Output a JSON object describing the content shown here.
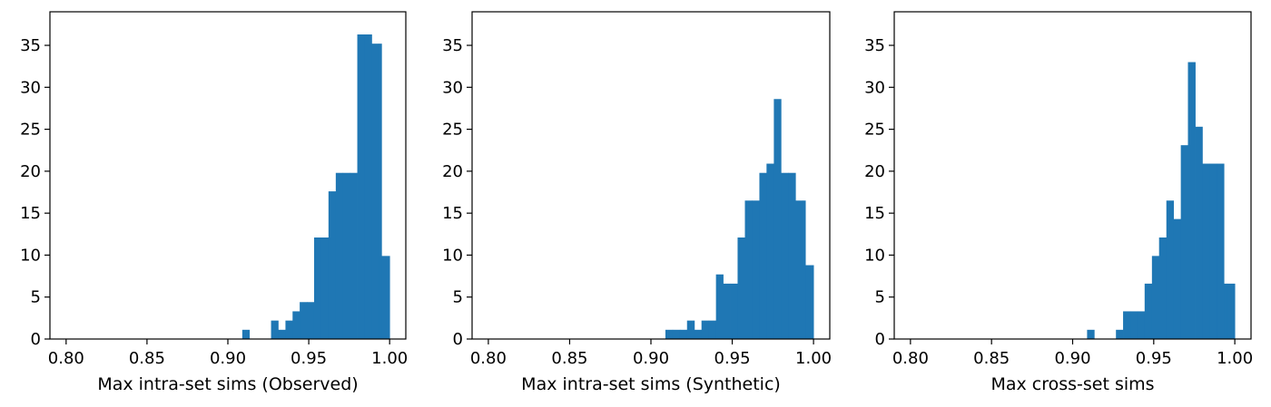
{
  "chart_data": [
    {
      "type": "bar",
      "xlabel": "Max intra-set sims (Observed)",
      "ylabel": "",
      "xlim": [
        0.79,
        1.01
      ],
      "ylim": [
        0,
        39
      ],
      "xticks": [
        "0.80",
        "0.85",
        "0.90",
        "0.95",
        "1.00"
      ],
      "yticks": [
        "0",
        "5",
        "10",
        "15",
        "20",
        "25",
        "30",
        "35"
      ],
      "bin_width": 0.00444,
      "bars": [
        {
          "x_start": 0.9089,
          "x_end": 0.9133,
          "value": 1.1
        },
        {
          "x_start": 0.9267,
          "x_end": 0.9311,
          "value": 2.2
        },
        {
          "x_start": 0.9311,
          "x_end": 0.9356,
          "value": 1.1
        },
        {
          "x_start": 0.9356,
          "x_end": 0.94,
          "value": 2.2
        },
        {
          "x_start": 0.94,
          "x_end": 0.9444,
          "value": 3.3
        },
        {
          "x_start": 0.9444,
          "x_end": 0.9489,
          "value": 4.4
        },
        {
          "x_start": 0.9489,
          "x_end": 0.9533,
          "value": 4.4
        },
        {
          "x_start": 0.9533,
          "x_end": 0.9578,
          "value": 12.1
        },
        {
          "x_start": 0.9578,
          "x_end": 0.9622,
          "value": 12.1
        },
        {
          "x_start": 0.9622,
          "x_end": 0.9667,
          "value": 17.6
        },
        {
          "x_start": 0.9667,
          "x_end": 0.9711,
          "value": 19.8
        },
        {
          "x_start": 0.9711,
          "x_end": 0.9756,
          "value": 19.8
        },
        {
          "x_start": 0.9756,
          "x_end": 0.98,
          "value": 19.8
        },
        {
          "x_start": 0.98,
          "x_end": 0.9844,
          "value": 36.3
        },
        {
          "x_start": 0.9844,
          "x_end": 0.9889,
          "value": 36.3
        },
        {
          "x_start": 0.9889,
          "x_end": 0.9933,
          "value": 35.2
        },
        {
          "x_start": 0.9933,
          "x_end": 0.995,
          "value": 35.2
        },
        {
          "x_start": 0.995,
          "x_end": 1.0,
          "value": 9.9
        }
      ],
      "color": "#1f77b4"
    },
    {
      "type": "bar",
      "xlabel": "Max intra-set sims (Synthetic)",
      "ylabel": "",
      "xlim": [
        0.79,
        1.01
      ],
      "ylim": [
        0,
        39
      ],
      "xticks": [
        "0.80",
        "0.85",
        "0.90",
        "0.95",
        "1.00"
      ],
      "yticks": [
        "0",
        "5",
        "10",
        "15",
        "20",
        "25",
        "30",
        "35"
      ],
      "bin_width": 0.00444,
      "bars": [
        {
          "x_start": 0.9089,
          "x_end": 0.9133,
          "value": 1.1
        },
        {
          "x_start": 0.9133,
          "x_end": 0.9178,
          "value": 1.1
        },
        {
          "x_start": 0.9178,
          "x_end": 0.9222,
          "value": 1.1
        },
        {
          "x_start": 0.9222,
          "x_end": 0.9267,
          "value": 2.2
        },
        {
          "x_start": 0.9267,
          "x_end": 0.9311,
          "value": 1.1
        },
        {
          "x_start": 0.9311,
          "x_end": 0.9356,
          "value": 2.2
        },
        {
          "x_start": 0.9356,
          "x_end": 0.94,
          "value": 2.2
        },
        {
          "x_start": 0.94,
          "x_end": 0.9444,
          "value": 7.7
        },
        {
          "x_start": 0.9444,
          "x_end": 0.9489,
          "value": 6.6
        },
        {
          "x_start": 0.9489,
          "x_end": 0.9533,
          "value": 6.6
        },
        {
          "x_start": 0.9533,
          "x_end": 0.9578,
          "value": 12.1
        },
        {
          "x_start": 0.9578,
          "x_end": 0.9622,
          "value": 16.5
        },
        {
          "x_start": 0.9622,
          "x_end": 0.9667,
          "value": 16.5
        },
        {
          "x_start": 0.9667,
          "x_end": 0.9711,
          "value": 19.8
        },
        {
          "x_start": 0.9711,
          "x_end": 0.9756,
          "value": 20.9
        },
        {
          "x_start": 0.9756,
          "x_end": 0.98,
          "value": 28.6
        },
        {
          "x_start": 0.98,
          "x_end": 0.9844,
          "value": 19.8
        },
        {
          "x_start": 0.9844,
          "x_end": 0.9889,
          "value": 19.8
        },
        {
          "x_start": 0.9889,
          "x_end": 0.9933,
          "value": 16.5
        },
        {
          "x_start": 0.9933,
          "x_end": 0.995,
          "value": 16.5
        },
        {
          "x_start": 0.995,
          "x_end": 1.0,
          "value": 8.8
        }
      ],
      "color": "#1f77b4"
    },
    {
      "type": "bar",
      "xlabel": "Max cross-set sims",
      "ylabel": "",
      "xlim": [
        0.79,
        1.01
      ],
      "ylim": [
        0,
        39
      ],
      "xticks": [
        "0.80",
        "0.85",
        "0.90",
        "0.95",
        "1.00"
      ],
      "yticks": [
        "0",
        "5",
        "10",
        "15",
        "20",
        "25",
        "30",
        "35"
      ],
      "bin_width": 0.00444,
      "bars": [
        {
          "x_start": 0.9089,
          "x_end": 0.9133,
          "value": 1.1
        },
        {
          "x_start": 0.9267,
          "x_end": 0.9311,
          "value": 1.1
        },
        {
          "x_start": 0.9311,
          "x_end": 0.9356,
          "value": 3.3
        },
        {
          "x_start": 0.9356,
          "x_end": 0.94,
          "value": 3.3
        },
        {
          "x_start": 0.94,
          "x_end": 0.9444,
          "value": 3.3
        },
        {
          "x_start": 0.9444,
          "x_end": 0.9489,
          "value": 6.6
        },
        {
          "x_start": 0.9489,
          "x_end": 0.9533,
          "value": 9.9
        },
        {
          "x_start": 0.9533,
          "x_end": 0.9578,
          "value": 12.1
        },
        {
          "x_start": 0.9578,
          "x_end": 0.9622,
          "value": 16.5
        },
        {
          "x_start": 0.9622,
          "x_end": 0.9667,
          "value": 14.3
        },
        {
          "x_start": 0.9667,
          "x_end": 0.9711,
          "value": 23.1
        },
        {
          "x_start": 0.9711,
          "x_end": 0.9756,
          "value": 33.0
        },
        {
          "x_start": 0.9756,
          "x_end": 0.98,
          "value": 25.3
        },
        {
          "x_start": 0.98,
          "x_end": 0.9844,
          "value": 20.9
        },
        {
          "x_start": 0.9844,
          "x_end": 0.9889,
          "value": 20.9
        },
        {
          "x_start": 0.9889,
          "x_end": 0.9933,
          "value": 20.9
        },
        {
          "x_start": 0.9933,
          "x_end": 0.995,
          "value": 6.6
        },
        {
          "x_start": 0.995,
          "x_end": 1.0,
          "value": 6.6
        }
      ],
      "color": "#1f77b4"
    }
  ]
}
